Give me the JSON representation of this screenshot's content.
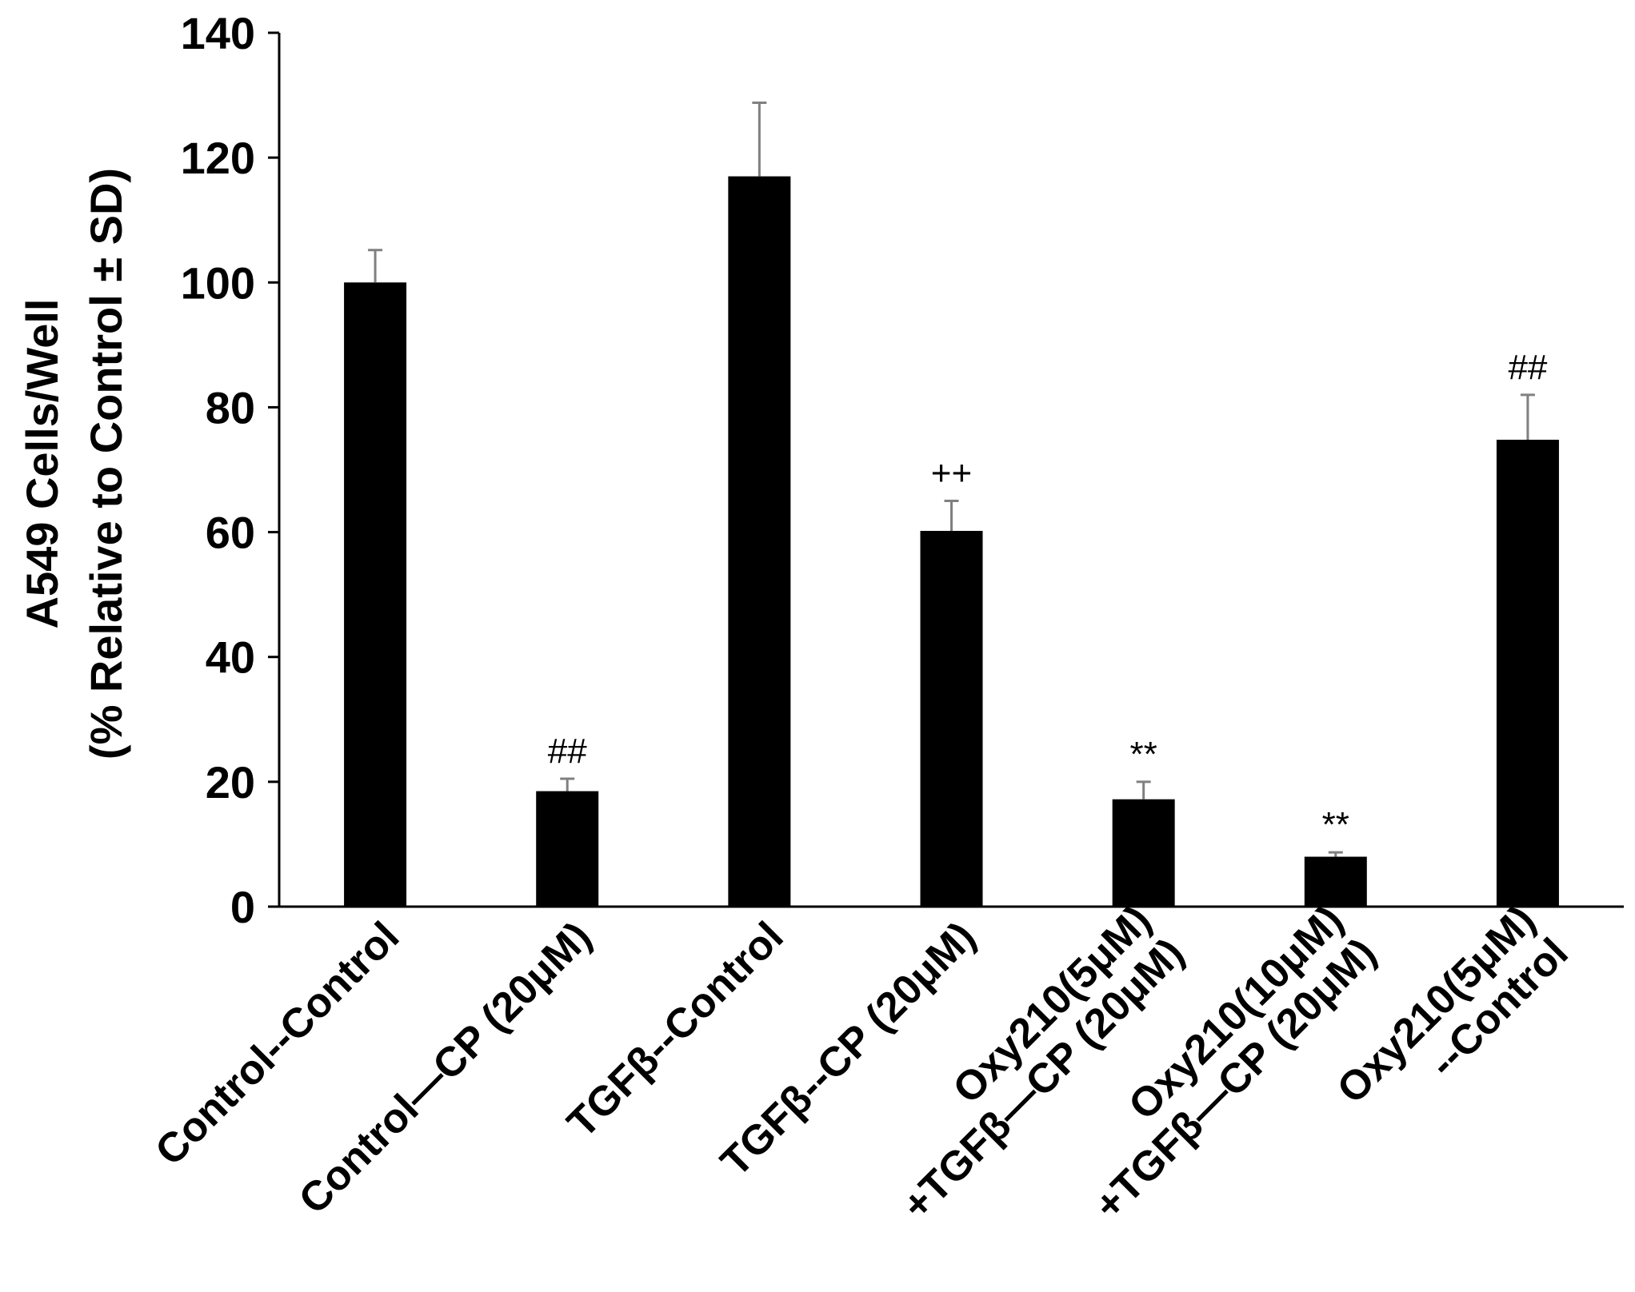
{
  "chart_data": {
    "type": "bar",
    "title": "",
    "xlabel": "",
    "ylabel_lines": [
      "A549 Cells/Well",
      "(% Relative to Control ± SD)"
    ],
    "ylim": [
      0,
      140
    ],
    "yticks": [
      0,
      20,
      40,
      60,
      80,
      100,
      120,
      140
    ],
    "grid": false,
    "legend": "none",
    "bar_color": "#000000",
    "error_bar_color": "#808080",
    "categories": [
      [
        "Control--Control"
      ],
      [
        "Control—CP (20μM)"
      ],
      [
        "TGFβ--Control"
      ],
      [
        "TGFβ--CP (20μM)"
      ],
      [
        "Oxy210(5μM)",
        "+TGFβ—CP (20μM)"
      ],
      [
        "Oxy210(10μM)",
        "+TGFβ—CP (20μM)"
      ],
      [
        "Oxy210(5μM)",
        "--Control"
      ]
    ],
    "values": [
      100,
      18.5,
      117,
      60.2,
      17.2,
      8.0,
      74.8
    ],
    "errors": [
      5.2,
      2.0,
      11.8,
      4.8,
      2.8,
      0.7,
      7.2
    ],
    "annotations": [
      "",
      "##",
      "",
      "++",
      "**",
      "**",
      "##"
    ]
  }
}
